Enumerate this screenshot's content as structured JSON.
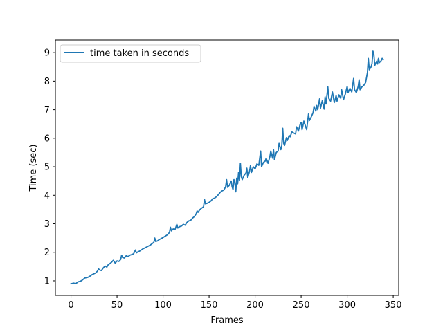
{
  "chart_data": {
    "type": "line",
    "title": "",
    "xlabel": "Frames",
    "ylabel": "Time (sec)",
    "xlim": [
      -16.95,
      355.95
    ],
    "ylim": [
      0.49,
      9.44
    ],
    "xticks": [
      0,
      50,
      100,
      150,
      200,
      250,
      300,
      350
    ],
    "yticks": [
      1,
      2,
      3,
      4,
      5,
      6,
      7,
      8,
      9
    ],
    "grid": false,
    "legend_position": "top-left",
    "series": [
      {
        "name": "time taken in seconds",
        "color": "#1f77b4",
        "points": [
          [
            0,
            0.9
          ],
          [
            3,
            0.92
          ],
          [
            5,
            0.9
          ],
          [
            8,
            0.97
          ],
          [
            10,
            0.98
          ],
          [
            12,
            1.02
          ],
          [
            15,
            1.1
          ],
          [
            18,
            1.12
          ],
          [
            20,
            1.15
          ],
          [
            23,
            1.22
          ],
          [
            25,
            1.25
          ],
          [
            27,
            1.28
          ],
          [
            29,
            1.35
          ],
          [
            30,
            1.42
          ],
          [
            31,
            1.38
          ],
          [
            33,
            1.36
          ],
          [
            35,
            1.45
          ],
          [
            37,
            1.52
          ],
          [
            39,
            1.48
          ],
          [
            40,
            1.55
          ],
          [
            42,
            1.6
          ],
          [
            44,
            1.65
          ],
          [
            46,
            1.72
          ],
          [
            48,
            1.62
          ],
          [
            50,
            1.7
          ],
          [
            52,
            1.68
          ],
          [
            54,
            1.75
          ],
          [
            55,
            1.9
          ],
          [
            56,
            1.82
          ],
          [
            58,
            1.8
          ],
          [
            60,
            1.88
          ],
          [
            62,
            1.85
          ],
          [
            64,
            1.9
          ],
          [
            66,
            1.92
          ],
          [
            68,
            1.95
          ],
          [
            70,
            2.08
          ],
          [
            71,
            1.98
          ],
          [
            73,
            2.02
          ],
          [
            75,
            2.05
          ],
          [
            78,
            2.12
          ],
          [
            80,
            2.15
          ],
          [
            83,
            2.2
          ],
          [
            86,
            2.25
          ],
          [
            88,
            2.3
          ],
          [
            90,
            2.35
          ],
          [
            91,
            2.5
          ],
          [
            92,
            2.38
          ],
          [
            94,
            2.4
          ],
          [
            96,
            2.45
          ],
          [
            98,
            2.48
          ],
          [
            100,
            2.52
          ],
          [
            103,
            2.58
          ],
          [
            105,
            2.62
          ],
          [
            107,
            2.7
          ],
          [
            108,
            2.88
          ],
          [
            109,
            2.75
          ],
          [
            111,
            2.82
          ],
          [
            113,
            2.8
          ],
          [
            115,
            2.98
          ],
          [
            116,
            2.85
          ],
          [
            118,
            2.9
          ],
          [
            120,
            2.92
          ],
          [
            122,
            2.98
          ],
          [
            124,
            2.95
          ],
          [
            126,
            3.05
          ],
          [
            128,
            3.1
          ],
          [
            130,
            3.12
          ],
          [
            132,
            3.2
          ],
          [
            134,
            3.25
          ],
          [
            136,
            3.35
          ],
          [
            137,
            3.45
          ],
          [
            138,
            3.4
          ],
          [
            140,
            3.5
          ],
          [
            142,
            3.55
          ],
          [
            144,
            3.6
          ],
          [
            145,
            3.85
          ],
          [
            146,
            3.7
          ],
          [
            148,
            3.72
          ],
          [
            150,
            3.75
          ],
          [
            152,
            3.8
          ],
          [
            154,
            3.88
          ],
          [
            156,
            3.9
          ],
          [
            158,
            3.95
          ],
          [
            160,
            4.02
          ],
          [
            162,
            4.1
          ],
          [
            164,
            4.15
          ],
          [
            166,
            4.18
          ],
          [
            168,
            4.3
          ],
          [
            169,
            4.55
          ],
          [
            170,
            4.28
          ],
          [
            172,
            4.35
          ],
          [
            174,
            4.5
          ],
          [
            175,
            4.3
          ],
          [
            176,
            4.2
          ],
          [
            177,
            4.55
          ],
          [
            178,
            4.45
          ],
          [
            179,
            4.12
          ],
          [
            180,
            4.6
          ],
          [
            181,
            4.4
          ],
          [
            182,
            4.8
          ],
          [
            183,
            4.52
          ],
          [
            184,
            5.12
          ],
          [
            185,
            4.65
          ],
          [
            186,
            4.55
          ],
          [
            188,
            4.7
          ],
          [
            190,
            4.78
          ],
          [
            191,
            4.95
          ],
          [
            192,
            4.62
          ],
          [
            194,
            4.85
          ],
          [
            195,
            5.05
          ],
          [
            196,
            4.8
          ],
          [
            198,
            5.0
          ],
          [
            200,
            4.92
          ],
          [
            202,
            5.1
          ],
          [
            204,
            5.05
          ],
          [
            206,
            5.55
          ],
          [
            207,
            5.0
          ],
          [
            209,
            5.15
          ],
          [
            211,
            5.2
          ],
          [
            212,
            5.3
          ],
          [
            214,
            5.12
          ],
          [
            216,
            5.35
          ],
          [
            217,
            5.55
          ],
          [
            219,
            5.3
          ],
          [
            220,
            5.6
          ],
          [
            221,
            5.25
          ],
          [
            223,
            5.5
          ],
          [
            225,
            5.55
          ],
          [
            226,
            5.82
          ],
          [
            228,
            5.6
          ],
          [
            229,
            5.75
          ],
          [
            230,
            6.35
          ],
          [
            231,
            5.82
          ],
          [
            232,
            5.75
          ],
          [
            234,
            6.02
          ],
          [
            235,
            5.92
          ],
          [
            237,
            6.1
          ],
          [
            238,
            6.05
          ],
          [
            240,
            6.22
          ],
          [
            242,
            6.18
          ],
          [
            244,
            6.15
          ],
          [
            245,
            6.4
          ],
          [
            247,
            6.25
          ],
          [
            249,
            6.5
          ],
          [
            250,
            6.55
          ],
          [
            251,
            6.3
          ],
          [
            253,
            6.6
          ],
          [
            255,
            6.4
          ],
          [
            256,
            6.3
          ],
          [
            258,
            6.85
          ],
          [
            259,
            6.62
          ],
          [
            261,
            6.75
          ],
          [
            263,
            6.9
          ],
          [
            264,
            7.12
          ],
          [
            266,
            6.95
          ],
          [
            267,
            7.15
          ],
          [
            268,
            7.0
          ],
          [
            270,
            7.38
          ],
          [
            271,
            7.05
          ],
          [
            273,
            7.32
          ],
          [
            275,
            7.02
          ],
          [
            276,
            7.45
          ],
          [
            277,
            7.2
          ],
          [
            279,
            7.8
          ],
          [
            280,
            7.4
          ],
          [
            282,
            7.3
          ],
          [
            284,
            7.62
          ],
          [
            286,
            7.25
          ],
          [
            288,
            7.5
          ],
          [
            289,
            7.3
          ],
          [
            291,
            7.52
          ],
          [
            293,
            7.4
          ],
          [
            294,
            7.7
          ],
          [
            296,
            7.35
          ],
          [
            298,
            7.55
          ],
          [
            300,
            7.82
          ],
          [
            301,
            7.6
          ],
          [
            303,
            7.75
          ],
          [
            305,
            7.62
          ],
          [
            307,
            8.1
          ],
          [
            308,
            7.7
          ],
          [
            310,
            7.6
          ],
          [
            312,
            7.82
          ],
          [
            313,
            8.05
          ],
          [
            314,
            7.7
          ],
          [
            316,
            7.8
          ],
          [
            318,
            7.85
          ],
          [
            320,
            7.95
          ],
          [
            322,
            8.3
          ],
          [
            323,
            8.8
          ],
          [
            324,
            8.4
          ],
          [
            326,
            8.5
          ],
          [
            327,
            8.62
          ],
          [
            328,
            9.05
          ],
          [
            329,
            8.95
          ],
          [
            330,
            8.55
          ],
          [
            332,
            8.7
          ],
          [
            333,
            8.6
          ],
          [
            334,
            8.8
          ],
          [
            335,
            8.65
          ],
          [
            337,
            8.72
          ],
          [
            338,
            8.8
          ],
          [
            339,
            8.75
          ]
        ]
      }
    ]
  }
}
